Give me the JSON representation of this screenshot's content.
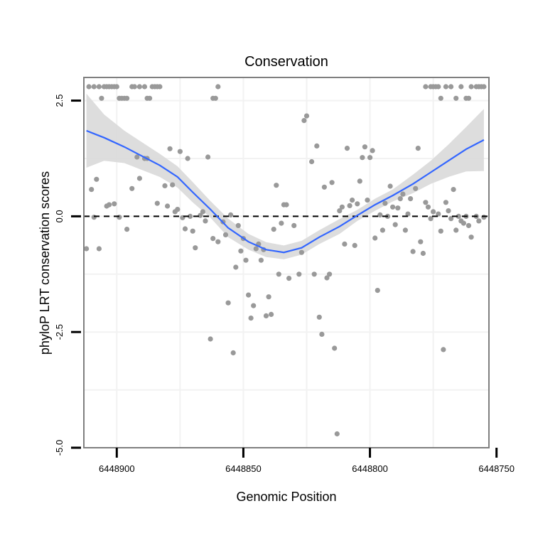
{
  "chart_data": {
    "type": "scatter",
    "title": "Conservation",
    "xlabel": "Genomic Position",
    "ylabel": "phyloP LRT conservation scores",
    "x_reversed": true,
    "xlim": [
      6448913,
      6448753
    ],
    "ylim": [
      -5.0,
      3.0
    ],
    "x_ticks": [
      6448900,
      6448850,
      6448800,
      6448750
    ],
    "x_tick_labels": [
      "6448900",
      "6448850",
      "6448800",
      "6448750"
    ],
    "y_ticks": [
      2.5,
      0.0,
      -2.5,
      -5.0
    ],
    "y_tick_labels": [
      "2.5",
      "0.0",
      "-2.5",
      "-5.0"
    ],
    "grid": true,
    "reference_line": {
      "y": 0.0,
      "style": "dashed"
    },
    "colors": {
      "points": "#999999",
      "smooth_line": "#3366FF",
      "confidence_band": "#D9D9D9",
      "panel_border": "#7F7F7F",
      "grid": "#F2F2F2"
    },
    "points": [
      [
        6448911,
        2.8
      ],
      [
        6448909,
        2.8
      ],
      [
        6448907,
        2.8
      ],
      [
        6448906,
        2.55
      ],
      [
        6448905,
        2.8
      ],
      [
        6448904,
        2.8
      ],
      [
        6448903,
        2.8
      ],
      [
        6448902,
        2.8
      ],
      [
        6448901,
        2.8
      ],
      [
        6448900,
        2.8
      ],
      [
        6448899,
        2.55
      ],
      [
        6448898,
        2.55
      ],
      [
        6448897,
        2.55
      ],
      [
        6448896,
        2.55
      ],
      [
        6448894,
        2.8
      ],
      [
        6448893,
        2.8
      ],
      [
        6448891,
        2.8
      ],
      [
        6448889,
        2.8
      ],
      [
        6448888,
        2.55
      ],
      [
        6448887,
        2.55
      ],
      [
        6448886,
        2.8
      ],
      [
        6448885,
        2.8
      ],
      [
        6448884,
        2.8
      ],
      [
        6448883,
        2.8
      ],
      [
        6448862,
        2.55
      ],
      [
        6448861,
        2.55
      ],
      [
        6448860,
        2.8
      ],
      [
        6448778,
        2.8
      ],
      [
        6448776,
        2.8
      ],
      [
        6448775,
        2.8
      ],
      [
        6448774,
        2.8
      ],
      [
        6448773,
        2.8
      ],
      [
        6448772,
        2.55
      ],
      [
        6448770,
        2.8
      ],
      [
        6448768,
        2.8
      ],
      [
        6448766,
        2.55
      ],
      [
        6448764,
        2.8
      ],
      [
        6448762,
        2.55
      ],
      [
        6448761,
        2.55
      ],
      [
        6448760,
        2.8
      ],
      [
        6448758,
        2.8
      ],
      [
        6448757,
        2.8
      ],
      [
        6448756,
        2.8
      ],
      [
        6448755,
        2.8
      ],
      [
        6448912,
        -0.7
      ],
      [
        6448910,
        0.58
      ],
      [
        6448909,
        -0.02
      ],
      [
        6448908,
        0.8
      ],
      [
        6448907,
        -0.7
      ],
      [
        6448904,
        0.22
      ],
      [
        6448903,
        0.25
      ],
      [
        6448901,
        0.27
      ],
      [
        6448899,
        -0.02
      ],
      [
        6448896,
        -0.28
      ],
      [
        6448894,
        0.6
      ],
      [
        6448892,
        1.28
      ],
      [
        6448891,
        0.82
      ],
      [
        6448889,
        1.25
      ],
      [
        6448888,
        1.25
      ],
      [
        6448884,
        0.28
      ],
      [
        6448881,
        0.66
      ],
      [
        6448880,
        0.22
      ],
      [
        6448879,
        1.46
      ],
      [
        6448878,
        0.68
      ],
      [
        6448877,
        0.1
      ],
      [
        6448876,
        0.15
      ],
      [
        6448875,
        1.4
      ],
      [
        6448874,
        -0.03
      ],
      [
        6448873,
        -0.27
      ],
      [
        6448872,
        1.25
      ],
      [
        6448871,
        0.0
      ],
      [
        6448870,
        -0.32
      ],
      [
        6448869,
        -0.68
      ],
      [
        6448867,
        0.02
      ],
      [
        6448866,
        0.1
      ],
      [
        6448865,
        -0.1
      ],
      [
        6448864,
        1.28
      ],
      [
        6448863,
        -2.65
      ],
      [
        6448862,
        -0.48
      ],
      [
        6448860,
        -0.55
      ],
      [
        6448858,
        -0.12
      ],
      [
        6448857,
        -0.4
      ],
      [
        6448856,
        -1.87
      ],
      [
        6448855,
        0.03
      ],
      [
        6448854,
        -2.95
      ],
      [
        6448853,
        -1.1
      ],
      [
        6448852,
        -0.2
      ],
      [
        6448851,
        -0.75
      ],
      [
        6448850,
        -0.48
      ],
      [
        6448849,
        -0.95
      ],
      [
        6448848,
        -1.7
      ],
      [
        6448847,
        -2.2
      ],
      [
        6448846,
        -1.93
      ],
      [
        6448845,
        -0.7
      ],
      [
        6448844,
        -0.6
      ],
      [
        6448843,
        -0.95
      ],
      [
        6448842,
        -0.72
      ],
      [
        6448841,
        -2.15
      ],
      [
        6448840,
        -1.74
      ],
      [
        6448839,
        -2.12
      ],
      [
        6448838,
        -0.28
      ],
      [
        6448837,
        0.67
      ],
      [
        6448836,
        -1.25
      ],
      [
        6448835,
        -0.15
      ],
      [
        6448834,
        0.25
      ],
      [
        6448833,
        0.25
      ],
      [
        6448832,
        -1.34
      ],
      [
        6448830,
        -0.2
      ],
      [
        6448828,
        -1.25
      ],
      [
        6448827,
        -0.78
      ],
      [
        6448826,
        2.07
      ],
      [
        6448825,
        2.17
      ],
      [
        6448823,
        1.18
      ],
      [
        6448822,
        -1.25
      ],
      [
        6448821,
        1.52
      ],
      [
        6448820,
        -2.18
      ],
      [
        6448819,
        -2.55
      ],
      [
        6448818,
        0.63
      ],
      [
        6448817,
        -1.33
      ],
      [
        6448816,
        -1.25
      ],
      [
        6448815,
        0.73
      ],
      [
        6448814,
        -2.85
      ],
      [
        6448813,
        -4.7
      ],
      [
        6448812,
        0.12
      ],
      [
        6448811,
        0.2
      ],
      [
        6448810,
        -0.6
      ],
      [
        6448809,
        1.47
      ],
      [
        6448808,
        0.23
      ],
      [
        6448807,
        0.35
      ],
      [
        6448806,
        -0.63
      ],
      [
        6448805,
        0.27
      ],
      [
        6448804,
        0.76
      ],
      [
        6448803,
        1.27
      ],
      [
        6448802,
        1.5
      ],
      [
        6448801,
        0.35
      ],
      [
        6448800,
        1.27
      ],
      [
        6448799,
        1.42
      ],
      [
        6448798,
        -0.47
      ],
      [
        6448797,
        -1.6
      ],
      [
        6448796,
        0.03
      ],
      [
        6448795,
        -0.3
      ],
      [
        6448794,
        0.28
      ],
      [
        6448793,
        0.0
      ],
      [
        6448792,
        0.65
      ],
      [
        6448791,
        0.2
      ],
      [
        6448790,
        -0.18
      ],
      [
        6448789,
        0.18
      ],
      [
        6448788,
        0.38
      ],
      [
        6448787,
        0.48
      ],
      [
        6448786,
        -0.3
      ],
      [
        6448785,
        0.05
      ],
      [
        6448784,
        0.38
      ],
      [
        6448783,
        -0.76
      ],
      [
        6448782,
        0.6
      ],
      [
        6448781,
        1.47
      ],
      [
        6448780,
        -0.55
      ],
      [
        6448779,
        -0.8
      ],
      [
        6448778,
        0.3
      ],
      [
        6448777,
        0.2
      ],
      [
        6448776,
        -0.05
      ],
      [
        6448775,
        0.1
      ],
      [
        6448773,
        0.05
      ],
      [
        6448772,
        -0.32
      ],
      [
        6448771,
        -2.88
      ],
      [
        6448770,
        0.3
      ],
      [
        6448769,
        0.12
      ],
      [
        6448768,
        -0.05
      ],
      [
        6448767,
        0.58
      ],
      [
        6448766,
        -0.3
      ],
      [
        6448765,
        0.0
      ],
      [
        6448764,
        -0.1
      ],
      [
        6448763,
        -0.15
      ],
      [
        6448762,
        0.0
      ],
      [
        6448761,
        -0.2
      ],
      [
        6448760,
        -0.45
      ],
      [
        6448758,
        0.0
      ],
      [
        6448757,
        -0.1
      ],
      [
        6448755,
        -0.02
      ]
    ],
    "smooth": {
      "x": [
        6448912,
        6448905,
        6448897,
        6448890,
        6448883,
        6448876,
        6448870,
        6448863,
        6448856,
        6448848,
        6448841,
        6448834,
        6448827,
        6448820,
        6448812,
        6448805,
        6448798,
        6448791,
        6448783,
        6448776,
        6448769,
        6448762,
        6448755
      ],
      "y": [
        1.85,
        1.7,
        1.5,
        1.3,
        1.1,
        0.85,
        0.52,
        0.15,
        -0.25,
        -0.55,
        -0.72,
        -0.78,
        -0.68,
        -0.45,
        -0.22,
        0.02,
        0.25,
        0.45,
        0.7,
        0.95,
        1.2,
        1.45,
        1.65
      ],
      "lower": [
        1.05,
        1.2,
        1.15,
        1.0,
        0.85,
        0.62,
        0.3,
        -0.03,
        -0.45,
        -0.72,
        -0.88,
        -0.93,
        -0.83,
        -0.6,
        -0.38,
        -0.1,
        0.12,
        0.32,
        0.5,
        0.7,
        0.85,
        0.97,
        0.98
      ],
      "upper": [
        2.65,
        2.2,
        1.85,
        1.6,
        1.35,
        1.08,
        0.74,
        0.33,
        -0.05,
        -0.38,
        -0.56,
        -0.63,
        -0.53,
        -0.3,
        -0.06,
        0.14,
        0.38,
        0.58,
        0.9,
        1.2,
        1.55,
        1.93,
        2.32
      ]
    }
  }
}
